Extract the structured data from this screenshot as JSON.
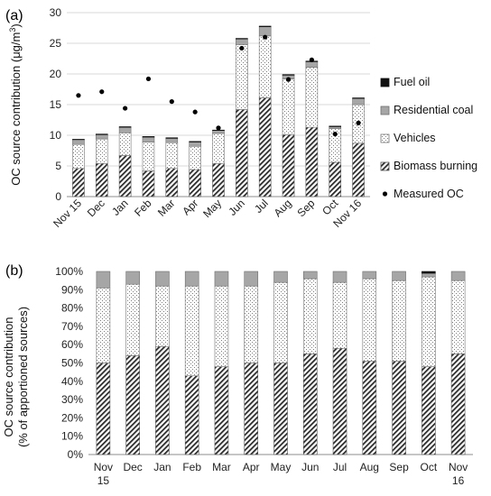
{
  "chart_data": [
    {
      "type": "bar",
      "stacked": true,
      "panel_label": "(a)",
      "categories": [
        "Nov 15",
        "Dec",
        "Jan",
        "Feb",
        "Mar",
        "Apr",
        "May",
        "Jun",
        "Jul",
        "Aug",
        "Sep",
        "Oct",
        "Nov 16"
      ],
      "ylabel": "OC source contribution (µg/m³)",
      "ylabel_main": "OC source contribution (μg/m",
      "ylabel_sup": "3",
      "ylabel_end": ")",
      "ylim": [
        0,
        30
      ],
      "yticks": [
        0,
        5,
        10,
        15,
        20,
        25,
        30
      ],
      "grid": true,
      "legend_position": "right",
      "series": [
        {
          "name": "Biomass burning",
          "style": "hatch",
          "values": [
            4.6,
            5.4,
            6.7,
            4.2,
            4.6,
            4.4,
            5.4,
            14.2,
            16.1,
            10.1,
            11.3,
            5.6,
            8.7
          ]
        },
        {
          "name": "Vehicles",
          "style": "dots",
          "values": [
            3.9,
            4.0,
            3.7,
            4.7,
            4.2,
            3.8,
            4.9,
            10.6,
            10.1,
            9.1,
            9.8,
            5.5,
            6.3
          ]
        },
        {
          "name": "Residential coal",
          "style": "gray",
          "values": [
            0.8,
            0.7,
            0.9,
            0.8,
            0.7,
            0.7,
            0.5,
            0.9,
            1.5,
            0.6,
            0.9,
            0.3,
            1.0
          ]
        },
        {
          "name": "Fuel oil",
          "style": "black",
          "values": [
            0.05,
            0.1,
            0.1,
            0.1,
            0.1,
            0.1,
            0.05,
            0.1,
            0.1,
            0.1,
            0.1,
            0.1,
            0.1
          ]
        }
      ],
      "markers": {
        "name": "Measured OC",
        "values": [
          16.5,
          17.1,
          14.4,
          19.2,
          15.5,
          13.8,
          11.2,
          24.2,
          26.0,
          19.1,
          22.3,
          10.2,
          12.0
        ]
      }
    },
    {
      "type": "bar",
      "stacked": true,
      "panel_label": "(b)",
      "categories": [
        "Nov 15",
        "Dec",
        "Jan",
        "Feb",
        "Mar",
        "Apr",
        "May",
        "Jun",
        "Jul",
        "Aug",
        "Sep",
        "Oct",
        "Nov 16"
      ],
      "ylabel": "OC source contribution (% of apportioned sources)",
      "ylabel_line1": "OC source contribution",
      "ylabel_line2": "(% of apportioned  sources)",
      "ylim": [
        0,
        100
      ],
      "yticks": [
        "0%",
        "10%",
        "20%",
        "30%",
        "40%",
        "50%",
        "60%",
        "70%",
        "80%",
        "90%",
        "100%"
      ],
      "grid": false,
      "series": [
        {
          "name": "Biomass burning",
          "style": "hatch",
          "values": [
            50,
            54,
            59,
            43,
            48,
            50,
            50,
            55,
            58,
            51,
            51,
            48,
            55
          ]
        },
        {
          "name": "Vehicles",
          "style": "dots",
          "values": [
            41,
            39,
            33,
            49,
            44,
            42,
            44,
            41,
            36,
            45,
            44,
            49,
            40
          ]
        },
        {
          "name": "Residential coal",
          "style": "gray",
          "values": [
            9,
            7,
            8,
            8,
            8,
            8,
            6,
            4,
            6,
            4,
            5,
            2,
            5
          ]
        },
        {
          "name": "Fuel oil",
          "style": "black",
          "values": [
            0,
            0,
            0,
            0,
            0,
            0,
            0,
            0,
            0,
            0,
            0,
            1,
            0
          ]
        }
      ]
    }
  ]
}
